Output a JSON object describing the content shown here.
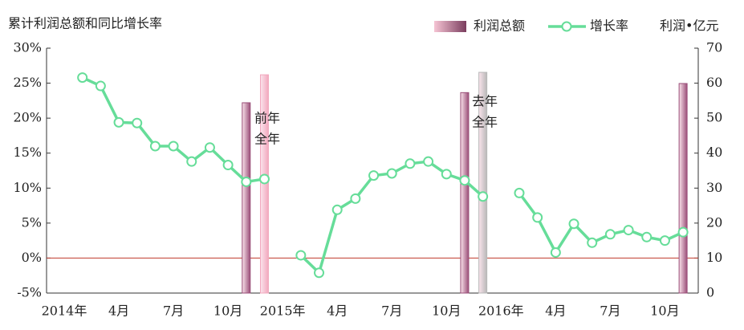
{
  "chart_data": {
    "type": "bar-line",
    "title": "累计利润总额和同比增长率",
    "y2_axis_label": "利润•亿元",
    "categories": [
      "2014年",
      null,
      null,
      "4月",
      null,
      null,
      "7月",
      null,
      null,
      "10月",
      null,
      null,
      "2015年",
      null,
      null,
      "4月",
      null,
      null,
      "7月",
      null,
      null,
      "10月",
      null,
      null,
      "2016年",
      null,
      null,
      "4月",
      null,
      null,
      "7月",
      null,
      null,
      "10月",
      null,
      null
    ],
    "series": [
      {
        "name": "利润总额",
        "type": "bar",
        "axis": "y2",
        "color": "#9a4e78",
        "colors": [
          null,
          null,
          null,
          null,
          null,
          null,
          null,
          null,
          null,
          null,
          "#9a4e78",
          "#f2a8be",
          null,
          null,
          null,
          null,
          null,
          null,
          null,
          null,
          null,
          null,
          "#9a4e78",
          "#b8b8b8",
          null,
          null,
          null,
          null,
          null,
          null,
          null,
          null,
          null,
          null,
          "#9a4e78",
          null
        ],
        "values": [
          null,
          null,
          null,
          null,
          null,
          null,
          null,
          null,
          null,
          null,
          54.4,
          62.4,
          null,
          null,
          null,
          null,
          null,
          null,
          null,
          null,
          null,
          null,
          57.3,
          63.1,
          null,
          null,
          null,
          null,
          null,
          null,
          null,
          null,
          null,
          null,
          59.9,
          null
        ]
      },
      {
        "name": "增长率",
        "type": "line",
        "axis": "y",
        "color": "#66dd99",
        "values": [
          null,
          25.8,
          24.6,
          19.4,
          19.3,
          16.0,
          16.0,
          13.8,
          15.8,
          13.3,
          10.9,
          11.3,
          null,
          0.4,
          -2.1,
          6.9,
          8.5,
          11.8,
          12.1,
          13.5,
          13.8,
          12.0,
          11.1,
          8.8,
          null,
          9.3,
          5.8,
          0.8,
          4.9,
          2.2,
          3.4,
          4.0,
          3.0,
          2.5,
          3.7,
          null
        ]
      }
    ],
    "annotations": [
      {
        "lines": [
          "前年",
          "全年"
        ]
      },
      {
        "lines": [
          "去年",
          "全年"
        ]
      }
    ],
    "ylim": [
      -5,
      30
    ],
    "yticks": [
      {
        "value": -5,
        "label": "-5%"
      },
      {
        "value": 0,
        "label": "0%"
      },
      {
        "value": 5,
        "label": "5%"
      },
      {
        "value": 10,
        "label": "10%"
      },
      {
        "value": 15,
        "label": "15%"
      },
      {
        "value": 20,
        "label": "20%"
      },
      {
        "value": 25,
        "label": "25%"
      },
      {
        "value": 30,
        "label": "30%"
      }
    ],
    "y2lim": [
      0,
      70
    ],
    "y2ticks": [
      0,
      10,
      20,
      30,
      40,
      50,
      60,
      70
    ],
    "zero_line_color": "#c0392b",
    "grid": false,
    "legend": "top-right"
  }
}
